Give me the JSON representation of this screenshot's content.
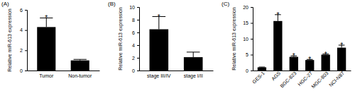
{
  "chart_data": [
    {
      "type": "bar",
      "title": "(A)",
      "ylabel": "Relative miR-613 expression",
      "categories": [
        "Tumor",
        "Non-tumor"
      ],
      "values": [
        4.3,
        1.0
      ],
      "errors": [
        0.9,
        0.1
      ],
      "color": "#000000",
      "ylim": [
        0,
        6
      ],
      "yticks": [
        0,
        2,
        4,
        6
      ],
      "annotations": [
        {
          "x": "Tumor",
          "text": "*"
        }
      ]
    },
    {
      "type": "bar",
      "title": "(B)",
      "ylabel": "Relative miR-613 expression",
      "categories": [
        "stage III/IV",
        "stage I/II"
      ],
      "values": [
        6.5,
        2.1
      ],
      "errors": [
        2.0,
        0.8
      ],
      "color": "#000000",
      "ylim": [
        0,
        10
      ],
      "yticks": [
        0,
        2,
        4,
        6,
        8,
        10
      ],
      "annotations": [
        {
          "x": "stage III/IV",
          "text": "*"
        }
      ]
    },
    {
      "type": "bar",
      "title": "(C)",
      "ylabel": "Relative miR-613 expression",
      "categories": [
        "GES-1",
        "AGS",
        "BGC-823",
        "HGC-27",
        "MGC-803",
        "NCI-N87"
      ],
      "values": [
        1.0,
        15.6,
        4.3,
        3.3,
        5.0,
        7.2
      ],
      "errors": [
        0.1,
        2.0,
        0.3,
        0.2,
        0.2,
        0.8
      ],
      "color": "#000000",
      "ylim": [
        0,
        20
      ],
      "yticks": [
        0,
        5,
        10,
        15,
        20
      ],
      "annotations": [
        {
          "x": "AGS",
          "text": "*"
        },
        {
          "x": "BGC-823",
          "text": "*"
        },
        {
          "x": "HGC-27",
          "text": "*"
        },
        {
          "x": "MGC-803",
          "text": "*"
        },
        {
          "x": "NCI-N87",
          "text": "*"
        }
      ]
    }
  ]
}
